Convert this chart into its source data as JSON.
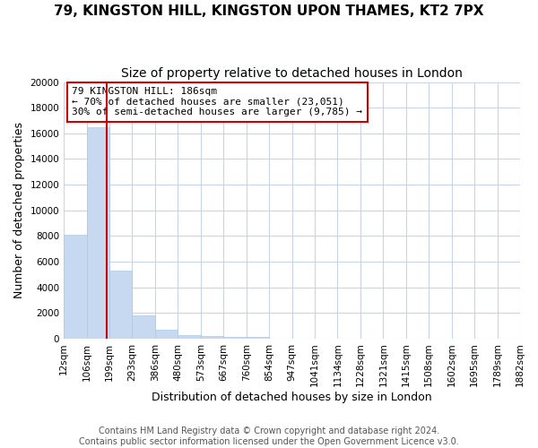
{
  "title": "79, KINGSTON HILL, KINGSTON UPON THAMES, KT2 7PX",
  "subtitle": "Size of property relative to detached houses in London",
  "xlabel": "Distribution of detached houses by size in London",
  "ylabel": "Number of detached properties",
  "bar_values": [
    8100,
    16500,
    5300,
    1800,
    700,
    300,
    200,
    150,
    100,
    0,
    0,
    0,
    0,
    0,
    0,
    0,
    0,
    0,
    0,
    0
  ],
  "bar_labels": [
    "12sqm",
    "106sqm",
    "199sqm",
    "293sqm",
    "386sqm",
    "480sqm",
    "573sqm",
    "667sqm",
    "760sqm",
    "854sqm",
    "947sqm",
    "1041sqm",
    "1134sqm",
    "1228sqm",
    "1321sqm",
    "1415sqm",
    "1508sqm",
    "1602sqm",
    "1695sqm",
    "1789sqm",
    "1882sqm"
  ],
  "bar_color": "#c6d9f0",
  "bar_edge_color": "#aec8e8",
  "property_line_x": 1.87,
  "property_line_color": "#cc0000",
  "annotation_text": "79 KINGSTON HILL: 186sqm\n← 70% of detached houses are smaller (23,051)\n30% of semi-detached houses are larger (9,785) →",
  "annotation_box_color": "#ffffff",
  "annotation_box_edge": "#cc0000",
  "ylim": [
    0,
    20000
  ],
  "yticks": [
    0,
    2000,
    4000,
    6000,
    8000,
    10000,
    12000,
    14000,
    16000,
    18000,
    20000
  ],
  "footer1": "Contains HM Land Registry data © Crown copyright and database right 2024.",
  "footer2": "Contains public sector information licensed under the Open Government Licence v3.0.",
  "background_color": "#ffffff",
  "grid_color": "#c8d4e8",
  "title_fontsize": 11,
  "subtitle_fontsize": 10,
  "axis_label_fontsize": 9,
  "tick_fontsize": 7.5,
  "footer_fontsize": 7
}
